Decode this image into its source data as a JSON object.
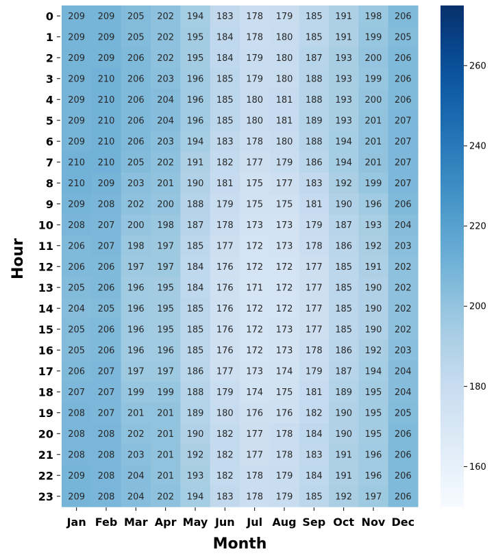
{
  "chart_data": {
    "type": "heatmap",
    "title": "",
    "xlabel": "Month",
    "ylabel": "Hour",
    "x_categories": [
      "Jan",
      "Feb",
      "Mar",
      "Apr",
      "May",
      "Jun",
      "Jul",
      "Aug",
      "Sep",
      "Oct",
      "Nov",
      "Dec"
    ],
    "y_categories": [
      "0",
      "1",
      "2",
      "3",
      "4",
      "5",
      "6",
      "7",
      "8",
      "9",
      "10",
      "11",
      "12",
      "13",
      "14",
      "15",
      "16",
      "17",
      "18",
      "19",
      "20",
      "21",
      "22",
      "23"
    ],
    "values": [
      [
        209,
        209,
        205,
        202,
        194,
        183,
        178,
        179,
        185,
        191,
        198,
        206
      ],
      [
        209,
        209,
        205,
        202,
        195,
        184,
        178,
        180,
        185,
        191,
        199,
        205
      ],
      [
        209,
        209,
        206,
        202,
        195,
        184,
        179,
        180,
        187,
        193,
        200,
        206
      ],
      [
        209,
        210,
        206,
        203,
        196,
        185,
        179,
        180,
        188,
        193,
        199,
        206
      ],
      [
        209,
        210,
        206,
        204,
        196,
        185,
        180,
        181,
        188,
        193,
        200,
        206
      ],
      [
        209,
        210,
        206,
        204,
        196,
        185,
        180,
        181,
        189,
        193,
        201,
        207
      ],
      [
        209,
        210,
        206,
        203,
        194,
        183,
        178,
        180,
        188,
        194,
        201,
        207
      ],
      [
        210,
        210,
        205,
        202,
        191,
        182,
        177,
        179,
        186,
        194,
        201,
        207
      ],
      [
        210,
        209,
        203,
        201,
        190,
        181,
        175,
        177,
        183,
        192,
        199,
        207
      ],
      [
        209,
        208,
        202,
        200,
        188,
        179,
        175,
        175,
        181,
        190,
        196,
        206
      ],
      [
        208,
        207,
        200,
        198,
        187,
        178,
        173,
        173,
        179,
        187,
        193,
        204
      ],
      [
        206,
        207,
        198,
        197,
        185,
        177,
        172,
        173,
        178,
        186,
        192,
        203
      ],
      [
        206,
        206,
        197,
        197,
        184,
        176,
        172,
        172,
        177,
        185,
        191,
        202
      ],
      [
        205,
        206,
        196,
        195,
        184,
        176,
        171,
        172,
        177,
        185,
        190,
        202
      ],
      [
        204,
        205,
        196,
        195,
        185,
        176,
        172,
        172,
        177,
        185,
        190,
        202
      ],
      [
        205,
        206,
        196,
        195,
        185,
        176,
        172,
        173,
        177,
        185,
        190,
        202
      ],
      [
        205,
        206,
        196,
        196,
        185,
        176,
        172,
        173,
        178,
        186,
        192,
        203
      ],
      [
        206,
        207,
        197,
        197,
        186,
        177,
        173,
        174,
        179,
        187,
        194,
        204
      ],
      [
        207,
        207,
        199,
        199,
        188,
        179,
        174,
        175,
        181,
        189,
        195,
        204
      ],
      [
        208,
        207,
        201,
        201,
        189,
        180,
        176,
        176,
        182,
        190,
        195,
        205
      ],
      [
        208,
        208,
        202,
        201,
        190,
        182,
        177,
        178,
        184,
        190,
        195,
        206
      ],
      [
        208,
        208,
        203,
        201,
        192,
        182,
        177,
        178,
        183,
        191,
        196,
        206
      ],
      [
        209,
        208,
        204,
        201,
        193,
        182,
        178,
        179,
        184,
        191,
        196,
        206
      ],
      [
        209,
        208,
        204,
        202,
        194,
        183,
        178,
        179,
        185,
        192,
        197,
        206
      ]
    ],
    "colorscale": "Blues",
    "color_range": [
      150,
      275
    ],
    "colorbar_ticks": [
      160,
      180,
      200,
      220,
      240,
      260
    ],
    "annotations": "cell values shown",
    "grid": false
  }
}
